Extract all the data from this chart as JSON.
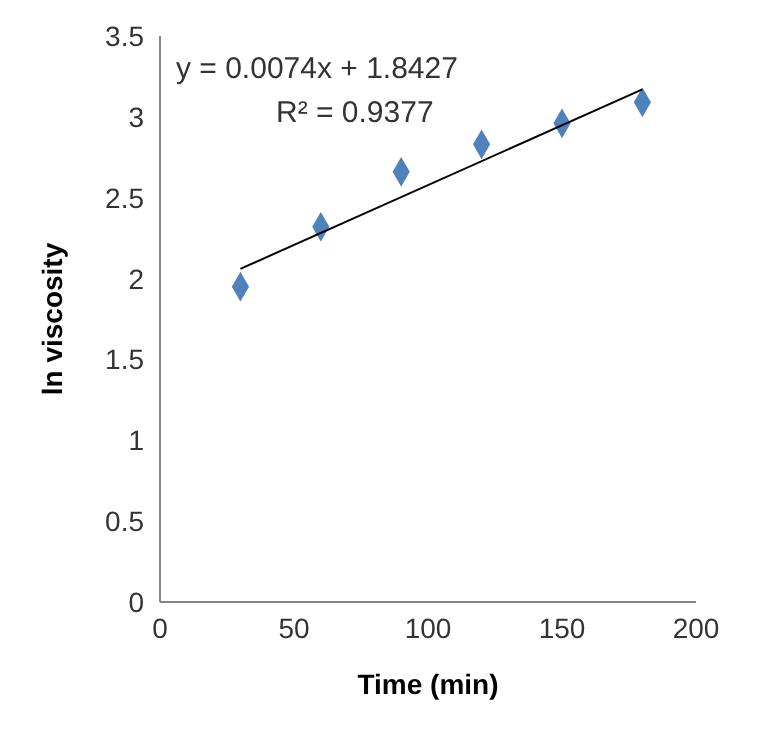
{
  "chart_data": {
    "type": "scatter",
    "xlabel": "Time (min)",
    "ylabel": "ln viscosity",
    "marker": "diamond",
    "x": [
      30,
      60,
      90,
      120,
      150,
      180
    ],
    "series": [
      {
        "color": "#4f81bd",
        "values": [
          1.95,
          2.32,
          2.66,
          2.83,
          2.96,
          3.09
        ]
      },
      {
        "type": "line",
        "marker": "none",
        "color": "#000000",
        "x": [
          30,
          180
        ],
        "values": [
          2.06,
          3.17
        ]
      }
    ],
    "xlim": [
      0,
      200
    ],
    "xticks": [
      0,
      50,
      100,
      150,
      200
    ],
    "ylim": [
      0,
      3.5
    ],
    "yticks": [
      0,
      0.5,
      1,
      1.5,
      2,
      2.5,
      3,
      3.5
    ],
    "annotations": [
      "y = 0.0074x + 1.8427",
      "R² = 0.9377"
    ]
  }
}
